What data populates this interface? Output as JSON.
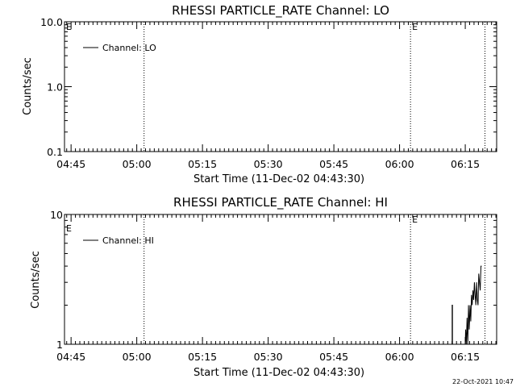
{
  "chart_data": [
    {
      "type": "line",
      "title": "RHESSI PARTICLE_RATE Channel: LO",
      "xlabel": "Start Time (11-Dec-02 04:43:30)",
      "ylabel": "Counts/sec",
      "yscale": "log",
      "xlim": [
        "04:43:30",
        "06:22:10"
      ],
      "ylim": [
        0.1,
        10.0
      ],
      "x_ticks": [
        "04:45",
        "05:00",
        "05:15",
        "05:30",
        "05:45",
        "06:00",
        "06:15"
      ],
      "y_ticks": [
        {
          "value": 0.1,
          "label": "0.1"
        },
        {
          "value": 1.0,
          "label": "1.0"
        },
        {
          "value": 10.0,
          "label": "10.0"
        }
      ],
      "series": [
        {
          "name": "Channel: LO",
          "x": [],
          "y": []
        }
      ],
      "markers": [
        {
          "time": "05:01:40",
          "label": "",
          "style": "dotted"
        },
        {
          "time": "06:02:30",
          "label": "E",
          "style": "dotted"
        },
        {
          "time": "06:19:30",
          "label": "",
          "style": "dotted"
        }
      ],
      "left_marker_label": "E",
      "legend_position": "top-left",
      "grid": false
    },
    {
      "type": "line",
      "title": "RHESSI PARTICLE_RATE Channel: HI",
      "xlabel": "Start Time (11-Dec-02 04:43:30)",
      "ylabel": "Counts/sec",
      "yscale": "log",
      "xlim": [
        "04:43:30",
        "06:22:10"
      ],
      "ylim": [
        1,
        10
      ],
      "x_ticks": [
        "04:45",
        "05:00",
        "05:15",
        "05:30",
        "05:45",
        "06:00",
        "06:15"
      ],
      "y_ticks": [
        {
          "value": 1,
          "label": "1"
        },
        {
          "value": 10,
          "label": "10"
        }
      ],
      "series": [
        {
          "name": "Channel: HI",
          "x": [
            "06:12:00",
            "06:12:00",
            "06:12:05",
            "06:12:05",
            "06:15:00",
            "06:15:05",
            "06:15:15",
            "06:15:25",
            "06:15:35",
            "06:15:45",
            "06:15:55",
            "06:16:05",
            "06:16:15",
            "06:16:25",
            "06:16:35",
            "06:16:45",
            "06:16:55",
            "06:17:05",
            "06:17:15",
            "06:17:25",
            "06:17:35",
            "06:17:45",
            "06:17:55",
            "06:18:05",
            "06:18:15",
            "06:18:25",
            "06:18:35",
            "06:18:45"
          ],
          "y": [
            1,
            2,
            2,
            1,
            1,
            1.3,
            1,
            1.6,
            1,
            2,
            1.3,
            2,
            1.5,
            2.4,
            2,
            2.6,
            2.2,
            3,
            2.4,
            2,
            3,
            2.2,
            2,
            3.5,
            3,
            2.6,
            4,
            4
          ]
        }
      ],
      "markers": [
        {
          "time": "05:01:40",
          "label": "",
          "style": "dotted"
        },
        {
          "time": "06:02:30",
          "label": "E",
          "style": "dotted"
        },
        {
          "time": "06:19:30",
          "label": "",
          "style": "dotted"
        }
      ],
      "left_marker_label": "E",
      "legend_position": "top-left",
      "grid": false
    }
  ],
  "timestamp": "22-Oct-2021 10:47"
}
